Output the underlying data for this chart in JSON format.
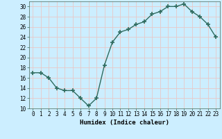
{
  "x": [
    0,
    1,
    2,
    3,
    4,
    5,
    6,
    7,
    8,
    9,
    10,
    11,
    12,
    13,
    14,
    15,
    16,
    17,
    18,
    19,
    20,
    21,
    22,
    23
  ],
  "y": [
    17,
    17,
    16,
    14,
    13.5,
    13.5,
    12,
    10.5,
    12,
    18.5,
    23,
    25,
    25.5,
    26.5,
    27,
    28.5,
    29,
    30,
    30,
    30.5,
    29,
    28,
    26.5,
    24
  ],
  "line_color": "#2e6b5e",
  "marker": "+",
  "marker_size": 4,
  "line_width": 1.0,
  "bg_color": "#cceeff",
  "grid_color": "#e8c8c8",
  "xlabel": "Humidex (Indice chaleur)",
  "ylim": [
    10,
    31
  ],
  "xlim": [
    -0.5,
    23.5
  ],
  "yticks": [
    10,
    12,
    14,
    16,
    18,
    20,
    22,
    24,
    26,
    28,
    30
  ],
  "xticks": [
    0,
    1,
    2,
    3,
    4,
    5,
    6,
    7,
    8,
    9,
    10,
    11,
    12,
    13,
    14,
    15,
    16,
    17,
    18,
    19,
    20,
    21,
    22,
    23
  ],
  "tick_fontsize": 5.5,
  "label_fontsize": 6.5
}
